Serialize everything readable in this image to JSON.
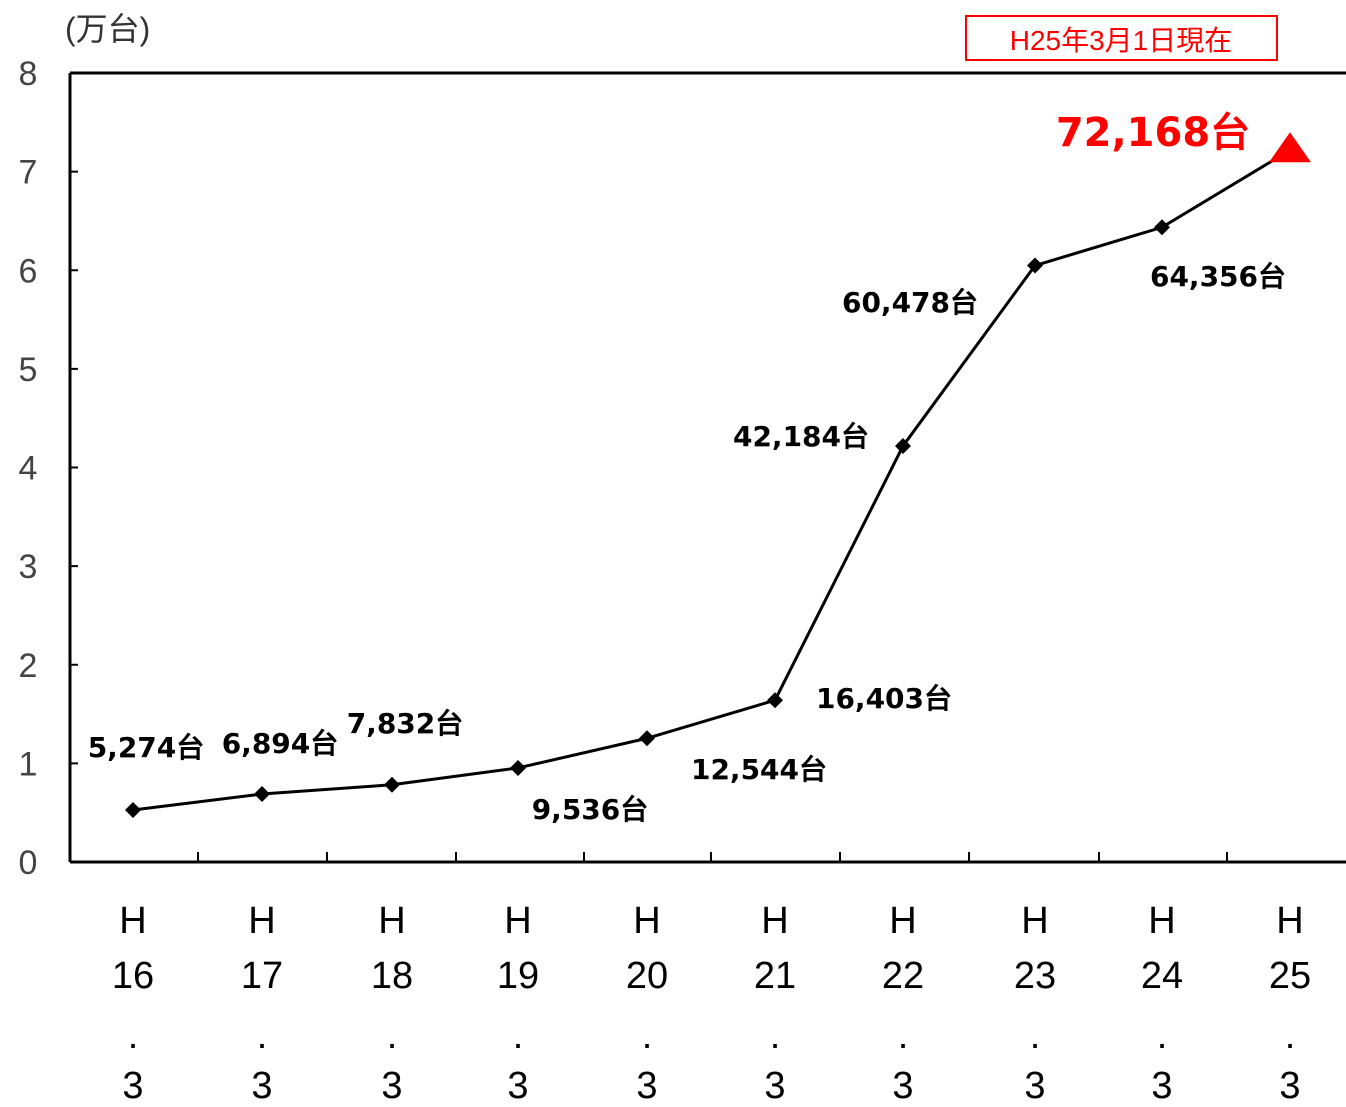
{
  "chart_data": {
    "type": "line",
    "unit_label": "(万台)",
    "status_box": "H25年3月1日現在",
    "ylim": [
      0,
      8
    ],
    "y_ticks": [
      "0",
      "1",
      "2",
      "3",
      "4",
      "5",
      "6",
      "7",
      "8"
    ],
    "categories": [
      {
        "era": "H",
        "year": "16",
        "dot": ".",
        "month": "3"
      },
      {
        "era": "H",
        "year": "17",
        "dot": ".",
        "month": "3"
      },
      {
        "era": "H",
        "year": "18",
        "dot": ".",
        "month": "3"
      },
      {
        "era": "H",
        "year": "19",
        "dot": ".",
        "month": "3"
      },
      {
        "era": "H",
        "year": "20",
        "dot": ".",
        "month": "3"
      },
      {
        "era": "H",
        "year": "21",
        "dot": ".",
        "month": "3"
      },
      {
        "era": "H",
        "year": "22",
        "dot": ".",
        "month": "3"
      },
      {
        "era": "H",
        "year": "23",
        "dot": ".",
        "month": "3"
      },
      {
        "era": "H",
        "year": "24",
        "dot": ".",
        "month": "3"
      },
      {
        "era": "H",
        "year": "25",
        "dot": ".",
        "month": "3"
      }
    ],
    "values": [
      0.5274,
      0.6894,
      0.7832,
      0.9536,
      1.2544,
      1.6403,
      4.2184,
      6.0478,
      6.4356,
      7.2168
    ],
    "data_labels": [
      "5,274台",
      "6,894台",
      "7,832台",
      "9,536台",
      "12,544台",
      "16,403台",
      "42,184台",
      "60,478台",
      "64,356台",
      "72,168台"
    ],
    "grid": false,
    "colors": {
      "line": "#000000",
      "marker": "#000000",
      "highlight": "#ff0000"
    }
  }
}
